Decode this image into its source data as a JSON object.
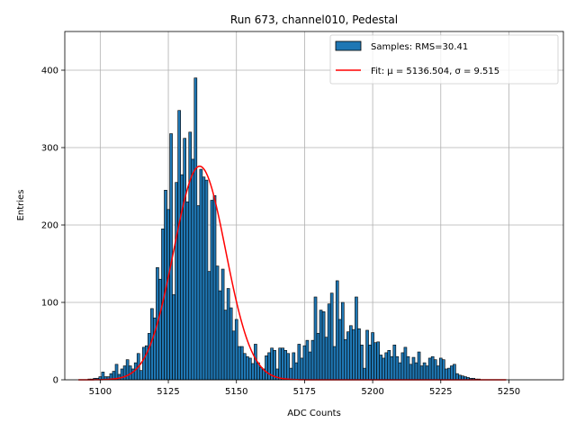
{
  "chart_data": {
    "type": "bar",
    "title": "Run 673, channel010, Pedestal",
    "xlabel": "ADC Counts",
    "ylabel": "Entries",
    "xlim": [
      5087,
      5270
    ],
    "ylim": [
      0,
      450
    ],
    "xticks": [
      5100,
      5125,
      5150,
      5175,
      5200,
      5225,
      5250
    ],
    "yticks": [
      0,
      100,
      200,
      300,
      400
    ],
    "grid": true,
    "legend_position": "top-right",
    "bin_width": 1,
    "series": [
      {
        "name": "Samples: RMS=30.41",
        "kind": "histogram",
        "color": "#1f77b4",
        "edgecolor": "#000000",
        "x": [
          5093,
          5094,
          5095,
          5096,
          5097,
          5098,
          5099,
          5100,
          5101,
          5102,
          5103,
          5104,
          5105,
          5106,
          5107,
          5108,
          5109,
          5110,
          5111,
          5112,
          5113,
          5114,
          5115,
          5116,
          5117,
          5118,
          5119,
          5120,
          5121,
          5122,
          5123,
          5124,
          5125,
          5126,
          5127,
          5128,
          5129,
          5130,
          5131,
          5132,
          5133,
          5134,
          5135,
          5136,
          5137,
          5138,
          5139,
          5140,
          5141,
          5142,
          5143,
          5144,
          5145,
          5146,
          5147,
          5148,
          5149,
          5150,
          5151,
          5152,
          5153,
          5154,
          5155,
          5156,
          5157,
          5158,
          5159,
          5160,
          5161,
          5162,
          5163,
          5164,
          5165,
          5166,
          5167,
          5168,
          5169,
          5170,
          5171,
          5172,
          5173,
          5174,
          5175,
          5176,
          5177,
          5178,
          5179,
          5180,
          5181,
          5182,
          5183,
          5184,
          5185,
          5186,
          5187,
          5188,
          5189,
          5190,
          5191,
          5192,
          5193,
          5194,
          5195,
          5196,
          5197,
          5198,
          5199,
          5200,
          5201,
          5202,
          5203,
          5204,
          5205,
          5206,
          5207,
          5208,
          5209,
          5210,
          5211,
          5212,
          5213,
          5214,
          5215,
          5216,
          5217,
          5218,
          5219,
          5220,
          5221,
          5222,
          5223,
          5224,
          5225,
          5226,
          5227,
          5228,
          5229,
          5230,
          5231,
          5232,
          5233,
          5234,
          5235,
          5236,
          5237,
          5238,
          5239,
          5240,
          5241,
          5242,
          5243,
          5244,
          5245,
          5246,
          5247,
          5248
        ],
        "values": [
          0,
          0,
          0,
          1,
          1,
          2,
          2,
          4,
          10,
          4,
          4,
          8,
          11,
          20,
          7,
          14,
          18,
          26,
          18,
          14,
          22,
          34,
          12,
          42,
          44,
          60,
          92,
          80,
          145,
          130,
          195,
          245,
          220,
          318,
          110,
          255,
          348,
          265,
          312,
          230,
          320,
          285,
          390,
          225,
          272,
          262,
          258,
          140,
          232,
          238,
          147,
          115,
          143,
          90,
          118,
          93,
          63,
          78,
          43,
          43,
          34,
          30,
          28,
          21,
          46,
          22,
          16,
          14,
          31,
          35,
          41,
          38,
          14,
          41,
          41,
          38,
          34,
          15,
          35,
          22,
          46,
          28,
          44,
          51,
          36,
          51,
          107,
          60,
          90,
          88,
          55,
          98,
          112,
          43,
          128,
          78,
          100,
          52,
          62,
          70,
          65,
          107,
          66,
          45,
          15,
          64,
          45,
          61,
          48,
          49,
          32,
          28,
          35,
          38,
          30,
          45,
          30,
          22,
          35,
          42,
          30,
          20,
          29,
          22,
          36,
          18,
          22,
          18,
          28,
          30,
          26,
          18,
          28,
          26,
          14,
          15,
          18,
          20,
          8,
          6,
          5,
          4,
          3,
          2,
          2,
          1,
          1,
          0,
          0,
          0,
          0,
          0,
          0,
          0,
          0,
          0
        ]
      },
      {
        "name": "Fit: μ = 5136.504, σ = 9.515",
        "kind": "gaussian_fit",
        "color": "#ff0000",
        "mu": 5136.504,
        "sigma": 9.515,
        "amplitude": 276,
        "x_range": [
          5092,
          5249
        ]
      }
    ]
  }
}
